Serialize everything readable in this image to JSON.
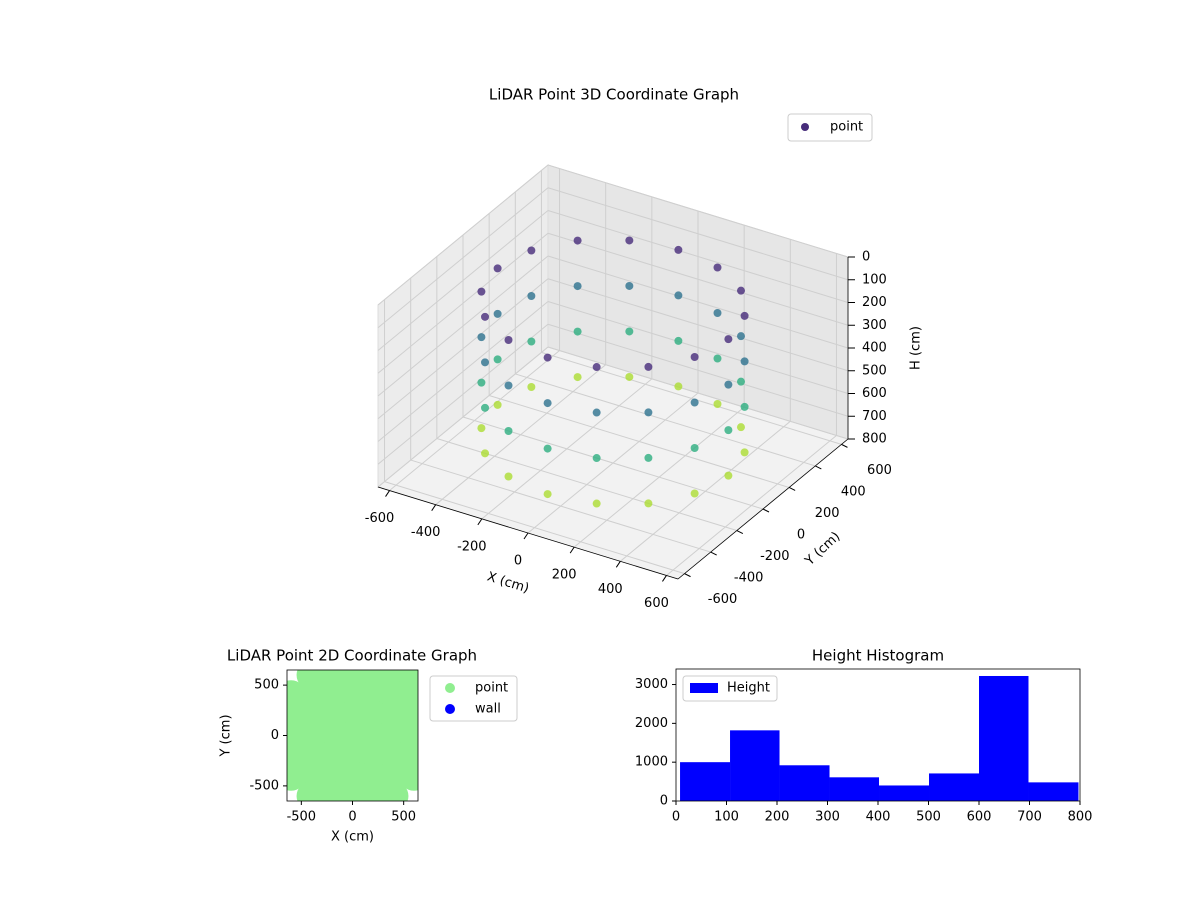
{
  "chart_data": [
    {
      "type": "scatter3d",
      "title": "LiDAR Point 3D Coordinate Graph",
      "xlabel": "X (cm)",
      "ylabel": "Y (cm)",
      "zlabel": "H (cm)",
      "xlim": [
        -650,
        650
      ],
      "ylim": [
        -650,
        650
      ],
      "zlim": [
        800,
        0
      ],
      "xticks": [
        -600,
        -400,
        -200,
        0,
        200,
        400,
        600
      ],
      "yticks": [
        -600,
        -400,
        -200,
        0,
        200,
        400,
        600
      ],
      "zticks": [
        0,
        100,
        200,
        300,
        400,
        500,
        600,
        700,
        800
      ],
      "colormap": "viridis",
      "grid": true,
      "legend": "upper right",
      "series": [
        {
          "name": "point",
          "color": "#472d7b",
          "x": [
            500,
            462,
            354,
            191,
            0,
            -191,
            -354,
            -462,
            -500,
            -462,
            -354,
            -191,
            0,
            191,
            354,
            462,
            500,
            462,
            354,
            191,
            0,
            -191,
            -354,
            -462,
            -500,
            -462,
            -354,
            -191,
            0,
            191,
            354,
            462,
            500,
            462,
            354,
            191,
            0,
            -191,
            -354,
            -462,
            -500,
            -462,
            -354,
            -191,
            0,
            191,
            354,
            462,
            500,
            462,
            354,
            191,
            0,
            -191,
            -354,
            -462,
            -500,
            -462,
            -354,
            -191,
            0,
            191,
            354,
            462
          ],
          "y": [
            0,
            191,
            354,
            462,
            500,
            462,
            354,
            191,
            0,
            -191,
            -354,
            -462,
            -500,
            -462,
            -354,
            -191,
            0,
            191,
            354,
            462,
            500,
            462,
            354,
            191,
            0,
            -191,
            -354,
            -462,
            -500,
            -462,
            -354,
            -191,
            0,
            191,
            354,
            462,
            500,
            462,
            354,
            191,
            0,
            -191,
            -354,
            -462,
            -500,
            -462,
            -354,
            -191,
            0,
            191,
            354,
            462,
            500,
            462,
            354,
            191,
            0,
            -191,
            -354,
            -462,
            -500,
            -462,
            -354,
            -191
          ],
          "z": [
            100,
            100,
            100,
            100,
            100,
            100,
            100,
            100,
            100,
            100,
            100,
            100,
            100,
            100,
            100,
            100,
            300,
            300,
            300,
            300,
            300,
            300,
            300,
            300,
            300,
            300,
            300,
            300,
            300,
            300,
            300,
            300,
            500,
            500,
            500,
            500,
            500,
            500,
            500,
            500,
            500,
            500,
            500,
            500,
            500,
            500,
            500,
            500,
            700,
            700,
            700,
            700,
            700,
            700,
            700,
            700,
            700,
            700,
            700,
            700,
            700,
            700,
            700,
            700
          ]
        }
      ]
    },
    {
      "type": "scatter",
      "title": "LiDAR Point 2D Coordinate Graph",
      "xlabel": "X (cm)",
      "ylabel": "Y (cm)",
      "xlim": [
        -640,
        640
      ],
      "ylim": [
        -650,
        650
      ],
      "xticks": [
        -500,
        0,
        500
      ],
      "yticks": [
        -500,
        0,
        500
      ],
      "legend": "outside right",
      "series": [
        {
          "name": "point",
          "color": "#90ee90",
          "x": [
            -400,
            -200,
            0,
            200,
            400,
            600,
            -600,
            -400,
            -200,
            0,
            200,
            400,
            600,
            -600,
            -400,
            -200,
            0,
            200,
            400,
            600,
            -600,
            -400,
            -200,
            0,
            200,
            400,
            600,
            -600,
            -400,
            -200,
            0,
            200,
            400,
            600,
            -600,
            -400,
            -200,
            0,
            200,
            400,
            600,
            -400,
            -200,
            0,
            200,
            400
          ],
          "y": [
            600,
            600,
            600,
            600,
            600,
            600,
            400,
            400,
            400,
            400,
            400,
            400,
            400,
            200,
            200,
            200,
            200,
            200,
            200,
            200,
            0,
            0,
            0,
            0,
            0,
            0,
            0,
            -200,
            -200,
            -200,
            -200,
            -200,
            -200,
            -200,
            -400,
            -400,
            -400,
            -400,
            -400,
            -400,
            -400,
            -600,
            -600,
            -600,
            -600,
            -600
          ]
        },
        {
          "name": "wall",
          "color": "#0000ff",
          "x": [],
          "y": []
        }
      ]
    },
    {
      "type": "histogram",
      "title": "Height Histogram",
      "bins": [
        8,
        107,
        205,
        304,
        402,
        501,
        600,
        698,
        797
      ],
      "counts": [
        1000,
        1820,
        920,
        610,
        400,
        710,
        3220,
        480
      ],
      "series_name": "Height",
      "color": "#0000ff",
      "xlim": [
        0,
        800
      ],
      "ylim": [
        0,
        3400
      ],
      "xticks": [
        0,
        100,
        200,
        300,
        400,
        500,
        600,
        700,
        800
      ],
      "yticks": [
        0,
        1000,
        2000,
        3000
      ],
      "legend": "upper left"
    }
  ]
}
